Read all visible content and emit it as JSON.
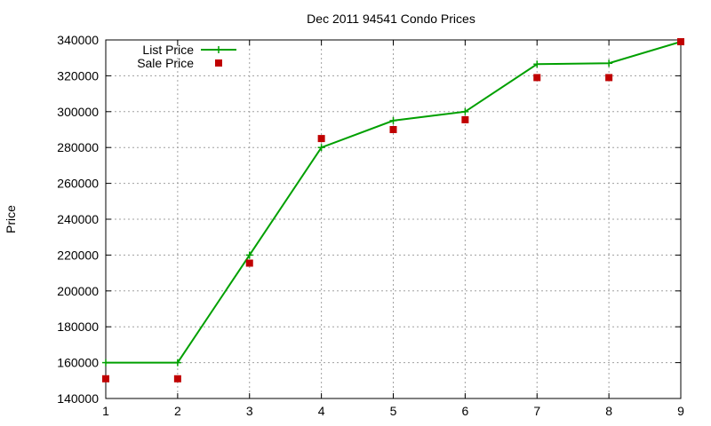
{
  "chart_data": {
    "type": "line",
    "title": "Dec 2011 94541 Condo Prices",
    "xlabel": "",
    "ylabel": "Price",
    "x": [
      1,
      2,
      3,
      4,
      5,
      6,
      7,
      8,
      9
    ],
    "xlim": [
      1,
      9
    ],
    "ylim": [
      140000,
      340000
    ],
    "x_ticks": [
      "1",
      "2",
      "3",
      "4",
      "5",
      "6",
      "7",
      "8",
      "9"
    ],
    "y_ticks": [
      "140000",
      "160000",
      "180000",
      "200000",
      "220000",
      "240000",
      "260000",
      "280000",
      "300000",
      "320000",
      "340000"
    ],
    "grid": true,
    "legend_position": "top-left",
    "series": [
      {
        "name": "List Price",
        "style": "line+cross",
        "color": "#00a000",
        "values": [
          160000,
          160000,
          220000,
          280000,
          295000,
          300000,
          326500,
          327000,
          339000
        ]
      },
      {
        "name": "Sale Price",
        "style": "square-points",
        "color": "#c00000",
        "values": [
          151000,
          151000,
          215500,
          285000,
          290000,
          295500,
          319000,
          319000,
          339000
        ]
      }
    ]
  }
}
